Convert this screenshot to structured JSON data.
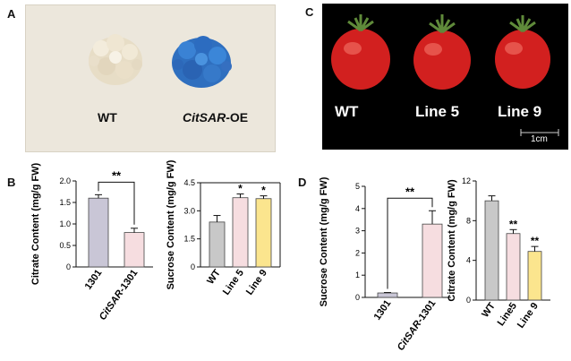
{
  "panels": {
    "a": "A",
    "b": "B",
    "c": "C",
    "d": "D"
  },
  "panelA": {
    "label_wt": "WT",
    "label_oe_italic": "CitSAR",
    "label_oe_suffix": "-OE"
  },
  "panelC": {
    "labels": [
      "WT",
      "Line 5",
      "Line 9"
    ],
    "scale_label": "1cm"
  },
  "chart_data": [
    {
      "type": "bar",
      "ylabel": "Citrate Content (mg/g FW)",
      "categories": [
        "1301",
        "CitSAR-1301"
      ],
      "values": [
        1.6,
        0.8
      ],
      "errors": [
        0.08,
        0.1
      ],
      "ylim": [
        0,
        2.0
      ],
      "ticks": [
        "0",
        "0.5",
        "1.0",
        "1.5",
        "2.0"
      ],
      "significance": [
        {
          "pair": [
            0,
            1
          ],
          "text": "**"
        }
      ],
      "colors": [
        "#c9c6d6",
        "#f6dde0"
      ]
    },
    {
      "type": "bar",
      "ylabel": "Sucrose Content (mg/g FW)",
      "categories": [
        "WT",
        "Line 5",
        "Line 9"
      ],
      "values": [
        2.4,
        3.7,
        3.65
      ],
      "errors": [
        0.35,
        0.2,
        0.15
      ],
      "ylim": [
        0,
        4.5
      ],
      "ticks": [
        "0",
        "1.5",
        "3.0",
        "4.5"
      ],
      "stars": [
        "",
        "*",
        "*"
      ],
      "colors": [
        "#c8c8c8",
        "#f6dde0",
        "#fbe58e"
      ]
    },
    {
      "type": "bar",
      "ylabel": "Sucrose Content (mg/g FW)",
      "categories": [
        "1301",
        "CitSAR-1301"
      ],
      "values": [
        0.2,
        3.3
      ],
      "errors": [
        0.02,
        0.6
      ],
      "ylim": [
        0,
        5
      ],
      "ticks": [
        "0",
        "1",
        "2",
        "3",
        "4",
        "5"
      ],
      "significance": [
        {
          "pair": [
            0,
            1
          ],
          "text": "**"
        }
      ],
      "colors": [
        "#c9c6d6",
        "#f6dde0"
      ]
    },
    {
      "type": "bar",
      "ylabel": "Citrate Content (mg/g FW)",
      "categories": [
        "WT",
        "Line5",
        "Line 9"
      ],
      "values": [
        10.0,
        6.7,
        4.9
      ],
      "errors": [
        0.5,
        0.4,
        0.5
      ],
      "ylim": [
        0,
        12
      ],
      "ticks": [
        "0",
        "4",
        "8",
        "12"
      ],
      "stars": [
        "",
        "**",
        "**"
      ],
      "colors": [
        "#c8c8c8",
        "#f6dde0",
        "#fbe58e"
      ]
    }
  ]
}
